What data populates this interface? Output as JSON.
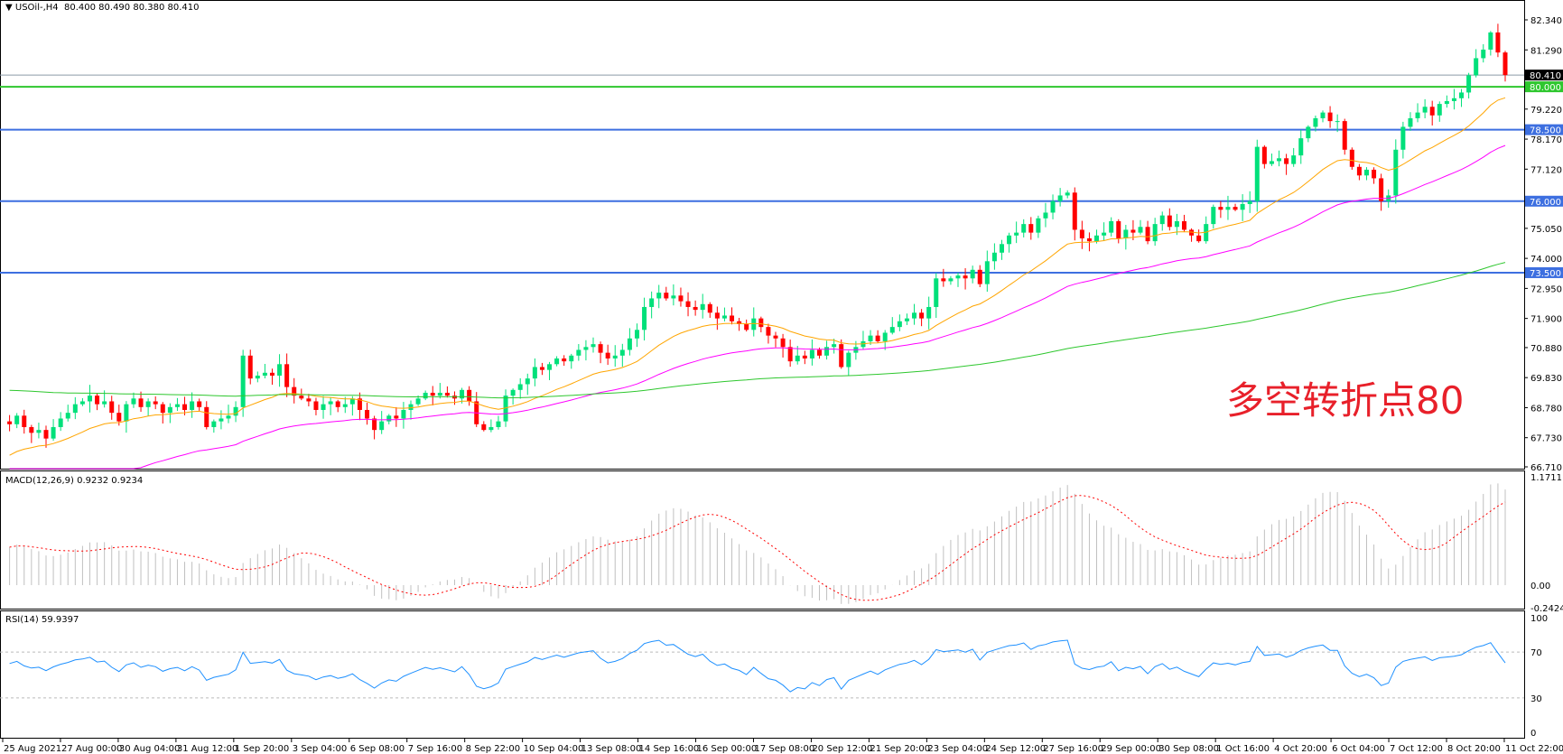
{
  "chart_data": [
    {
      "type": "candlestick",
      "title": "USOil-,H4",
      "last_bar_ohlc": "80.400 80.490 80.380 80.410",
      "ylim": [
        66.71,
        82.34
      ],
      "yticks": [
        "82.340",
        "81.290",
        "79.220",
        "78.170",
        "77.120",
        "75.050",
        "74.000",
        "72.950",
        "71.900",
        "70.880",
        "69.830",
        "68.780",
        "67.730",
        "66.710"
      ],
      "xticks": [
        "25 Aug 2021",
        "27 Aug 00:00",
        "30 Aug 04:00",
        "31 Aug 12:00",
        "1 Sep 20:00",
        "3 Sep 04:00",
        "6 Sep 08:00",
        "7 Sep 16:00",
        "8 Sep 22:00",
        "10 Sep 04:00",
        "13 Sep 08:00",
        "14 Sep 16:00",
        "16 Sep 00:00",
        "17 Sep 08:00",
        "20 Sep 12:00",
        "21 Sep 20:00",
        "23 Sep 04:00",
        "24 Sep 12:00",
        "27 Sep 16:00",
        "29 Sep 00:00",
        "30 Sep 08:00",
        "1 Oct 16:00",
        "4 Oct 20:00",
        "6 Oct 04:00",
        "7 Oct 12:00",
        "8 Oct 20:00",
        "11 Oct 22:00"
      ],
      "closes": [
        68.2,
        68.5,
        68.1,
        67.9,
        68.0,
        67.7,
        68.1,
        68.4,
        68.6,
        68.9,
        69.0,
        69.2,
        68.9,
        69.0,
        68.6,
        68.3,
        68.9,
        69.1,
        68.8,
        69.0,
        68.9,
        68.6,
        68.8,
        68.9,
        68.7,
        69.0,
        68.8,
        68.1,
        68.3,
        68.4,
        68.5,
        68.8,
        70.6,
        69.8,
        69.9,
        70.0,
        69.9,
        70.3,
        69.5,
        69.2,
        69.1,
        69.0,
        68.7,
        68.9,
        69.0,
        68.8,
        68.9,
        69.1,
        68.7,
        68.4,
        68.0,
        68.3,
        68.5,
        68.4,
        68.7,
        68.9,
        69.1,
        69.3,
        69.2,
        69.3,
        69.2,
        69.1,
        69.4,
        69.0,
        68.2,
        68.0,
        68.1,
        68.3,
        69.2,
        69.4,
        69.6,
        69.8,
        70.2,
        70.1,
        70.3,
        70.5,
        70.4,
        70.6,
        70.8,
        70.9,
        71.0,
        70.7,
        70.5,
        70.6,
        70.8,
        71.2,
        71.5,
        72.3,
        72.6,
        72.8,
        72.6,
        72.7,
        72.5,
        72.3,
        72.2,
        72.4,
        72.1,
        71.9,
        72.0,
        71.8,
        71.7,
        71.5,
        71.9,
        71.6,
        71.3,
        71.2,
        70.9,
        70.4,
        70.6,
        70.5,
        70.8,
        70.6,
        70.9,
        71.0,
        70.2,
        70.7,
        70.9,
        71.1,
        71.3,
        71.1,
        71.4,
        71.6,
        71.8,
        71.9,
        72.1,
        71.9,
        72.3,
        73.3,
        73.2,
        73.3,
        73.4,
        73.3,
        73.6,
        73.1,
        73.9,
        74.2,
        74.5,
        74.8,
        74.9,
        75.2,
        74.9,
        75.4,
        75.6,
        76.0,
        76.2,
        76.3,
        75.0,
        74.7,
        74.6,
        74.8,
        74.9,
        75.3,
        74.7,
        75.0,
        74.9,
        75.1,
        74.6,
        75.2,
        75.5,
        75.1,
        75.3,
        75.0,
        74.8,
        74.6,
        75.2,
        75.8,
        75.7,
        75.8,
        75.7,
        75.9,
        76.0,
        77.9,
        77.3,
        77.4,
        77.5,
        77.3,
        77.6,
        78.2,
        78.6,
        78.9,
        79.1,
        78.8,
        78.8,
        77.8,
        77.2,
        76.9,
        77.1,
        76.8,
        76.0,
        76.2,
        77.8,
        78.6,
        78.9,
        79.1,
        79.3,
        79.0,
        79.4,
        79.5,
        79.6,
        79.8,
        80.4,
        81.0,
        81.3,
        81.9,
        81.2,
        80.41
      ],
      "current_price": {
        "label": "80.410",
        "value": 80.41,
        "color": "#000000"
      },
      "levels": [
        {
          "label": "80.000",
          "value": 80.0,
          "color": "#2ec72e"
        },
        {
          "label": "78.500",
          "value": 78.5,
          "color": "#3d6fe0"
        },
        {
          "label": "76.000",
          "value": 76.0,
          "color": "#3d6fe0"
        },
        {
          "label": "73.500",
          "value": 73.5,
          "color": "#3d6fe0"
        }
      ],
      "moving_averages": [
        {
          "color": "#ffa500"
        },
        {
          "color": "#ff00ff"
        },
        {
          "color": "#2ec72e"
        }
      ],
      "bull_color": "#00e07a",
      "bear_color": "#ff0000",
      "annotation": "多空转折点80"
    },
    {
      "type": "bar",
      "title": "MACD(12,26,9) 0.9232 0.9234",
      "ylim": [
        -0.2424,
        1.1711
      ],
      "yticks": [
        "1.1711",
        "0.00",
        "-0.2424"
      ],
      "histogram_color": "#c0c0c0",
      "signal_color": "#ff0000"
    },
    {
      "type": "line",
      "title": "RSI(14) 59.9397",
      "ylim": [
        0,
        100
      ],
      "yticks": [
        "100",
        "70",
        "30",
        "0"
      ],
      "levels": [
        70,
        30
      ],
      "color": "#1e90ff"
    }
  ]
}
